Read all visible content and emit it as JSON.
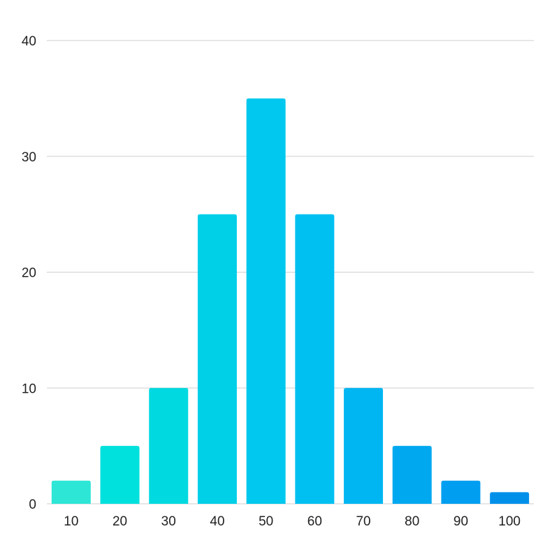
{
  "chart_data": {
    "type": "bar",
    "categories": [
      "10",
      "20",
      "30",
      "40",
      "50",
      "60",
      "70",
      "80",
      "90",
      "100"
    ],
    "values": [
      2,
      5,
      10,
      25,
      35,
      25,
      10,
      5,
      2,
      1
    ],
    "title": "",
    "xlabel": "",
    "ylabel": "",
    "ylim": [
      0,
      40
    ],
    "y_ticks": [
      "0",
      "10",
      "20",
      "30",
      "40"
    ],
    "grid": true,
    "legend": "none",
    "bar_colors": [
      "#2ee6d6",
      "#00e0dc",
      "#00d9e0",
      "#00cfe8",
      "#00c8ee",
      "#00c0f2",
      "#00b6f2",
      "#00a8f0",
      "#009ef0",
      "#0090ea"
    ]
  }
}
